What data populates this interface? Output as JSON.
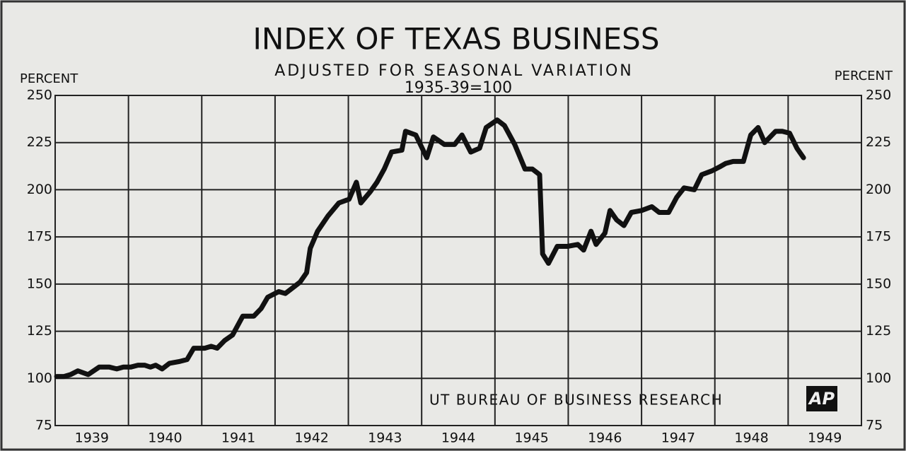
{
  "chart_data": {
    "type": "line",
    "title": "INDEX OF TEXAS BUSINESS",
    "subtitle": "ADJUSTED FOR SEASONAL VARIATION",
    "base_note": "1935-39=100",
    "y_label": "PERCENT",
    "source": "UT BUREAU OF BUSINESS RESEARCH",
    "logo": "AP",
    "categories": [
      "1939",
      "1940",
      "1941",
      "1942",
      "1943",
      "1944",
      "1945",
      "1946",
      "1947",
      "1948",
      "1949"
    ],
    "xlim": [
      1939,
      1950
    ],
    "ylim": [
      75,
      250
    ],
    "yticks": [
      75,
      100,
      125,
      150,
      175,
      200,
      225,
      250
    ],
    "grid": true,
    "color": "#111111",
    "x": [
      1939.02,
      1939.12,
      1939.21,
      1939.31,
      1939.45,
      1939.6,
      1939.74,
      1939.84,
      1939.93,
      1940.03,
      1940.13,
      1940.22,
      1940.3,
      1940.37,
      1940.46,
      1940.56,
      1940.7,
      1940.8,
      1940.89,
      1941.04,
      1941.13,
      1941.21,
      1941.31,
      1941.42,
      1941.56,
      1941.71,
      1941.81,
      1941.9,
      1942.05,
      1942.14,
      1942.24,
      1942.34,
      1942.43,
      1942.48,
      1942.58,
      1942.72,
      1942.87,
      1943.01,
      1943.11,
      1943.17,
      1943.3,
      1943.39,
      1943.49,
      1943.59,
      1943.73,
      1943.78,
      1943.92,
      1944.07,
      1944.16,
      1944.31,
      1944.45,
      1944.55,
      1944.67,
      1944.79,
      1944.88,
      1945.03,
      1945.13,
      1945.27,
      1945.41,
      1945.51,
      1945.61,
      1945.65,
      1945.73,
      1945.85,
      1945.99,
      1946.13,
      1946.21,
      1946.31,
      1946.38,
      1946.5,
      1946.57,
      1946.66,
      1946.76,
      1946.86,
      1947.0,
      1947.14,
      1947.24,
      1947.37,
      1947.48,
      1947.58,
      1947.72,
      1947.82,
      1947.96,
      1948.06,
      1948.15,
      1948.25,
      1948.39,
      1948.49,
      1948.59,
      1948.68,
      1948.83,
      1948.92,
      1949.02,
      1949.12,
      1949.21
    ],
    "values": [
      101,
      101,
      102,
      104,
      102,
      106,
      106,
      105,
      106,
      106,
      107,
      107,
      106,
      107,
      105,
      108,
      109,
      110,
      116,
      116,
      117,
      116,
      120,
      123,
      133,
      133,
      137,
      143,
      146,
      145,
      148,
      151,
      156,
      169,
      178,
      186,
      193,
      195,
      204,
      193,
      199,
      204,
      211,
      220,
      221,
      231,
      229,
      217,
      228,
      224,
      224,
      229,
      220,
      222,
      233,
      237,
      234,
      224,
      211,
      211,
      208,
      166,
      161,
      170,
      170,
      171,
      168,
      178,
      171,
      177,
      189,
      184,
      181,
      188,
      189,
      191,
      188,
      188,
      196,
      201,
      200,
      208,
      210,
      212,
      214,
      215,
      215,
      229,
      233,
      225,
      231,
      231,
      230,
      222,
      217
    ]
  }
}
